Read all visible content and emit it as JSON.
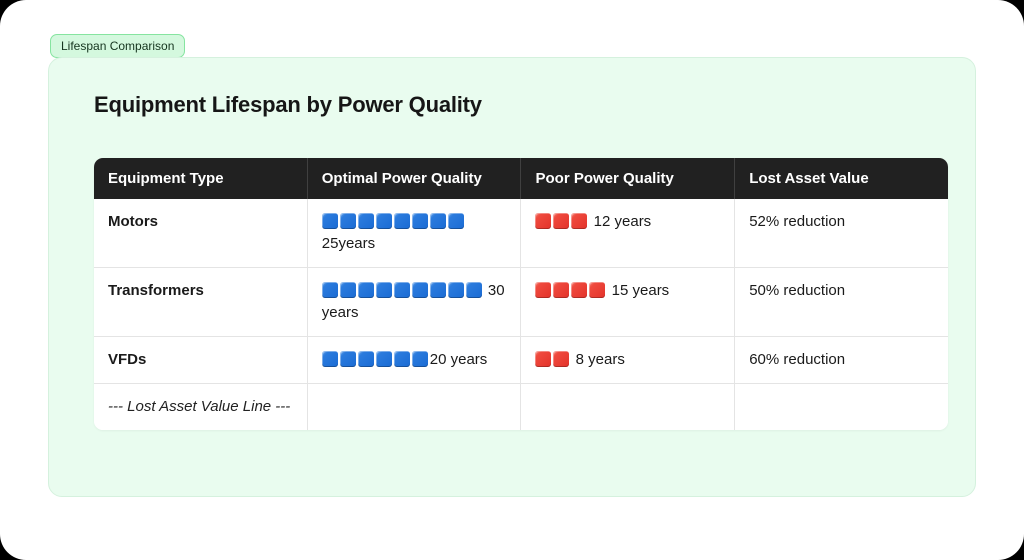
{
  "badge": {
    "label": "Lifespan Comparison"
  },
  "panel": {
    "title": "Equipment Lifespan by Power Quality"
  },
  "colors": {
    "panel_bg": "#e9fcef",
    "panel_border": "#d5f1de",
    "badge_bg": "#d4f8de",
    "badge_border": "#86e4a0",
    "header_bg": "#212121",
    "optimal_square_blue": "#1d6fd8",
    "poor_square_red": "#ee3a31",
    "row_divider": "#e4e4e4"
  },
  "table": {
    "headers": [
      "Equipment Type",
      "Optimal Power Quality",
      "Poor Power Quality",
      "Lost Asset Value"
    ],
    "rows": [
      {
        "name": "Motors",
        "optimal": {
          "squares": 8,
          "label": "25years"
        },
        "poor": {
          "squares": 3,
          "label": " 12 years"
        },
        "lost": "52% reduction"
      },
      {
        "name": "Transformers",
        "optimal": {
          "squares": 9,
          "label": " 30 years"
        },
        "poor": {
          "squares": 4,
          "label": " 15 years"
        },
        "lost": "50% reduction"
      },
      {
        "name": "VFDs",
        "optimal": {
          "squares": 6,
          "label": "20 years"
        },
        "poor": {
          "squares": 2,
          "label": " 8 years"
        },
        "lost": "60% reduction"
      }
    ],
    "note": "--- Lost Asset Value Line ---"
  },
  "chart_data": {
    "type": "table",
    "title": "Equipment Lifespan by Power Quality",
    "columns": [
      "Equipment Type",
      "Optimal Power Quality",
      "Poor Power Quality",
      "Lost Asset Value"
    ],
    "rows": [
      {
        "equipment": "Motors",
        "optimal_years": 25,
        "optimal_square_count": 8,
        "poor_years": 12,
        "poor_square_count": 3,
        "lost_asset_value": "52% reduction"
      },
      {
        "equipment": "Transformers",
        "optimal_years": 30,
        "optimal_square_count": 9,
        "poor_years": 15,
        "poor_square_count": 4,
        "lost_asset_value": "50% reduction"
      },
      {
        "equipment": "VFDs",
        "optimal_years": 20,
        "optimal_square_count": 6,
        "poor_years": 8,
        "poor_square_count": 2,
        "lost_asset_value": "60% reduction"
      }
    ],
    "note": "--- Lost Asset Value Line ---",
    "legend": {
      "blue_square": "optimal power quality lifespan (years)",
      "red_square": "poor power quality lifespan (years)"
    }
  }
}
